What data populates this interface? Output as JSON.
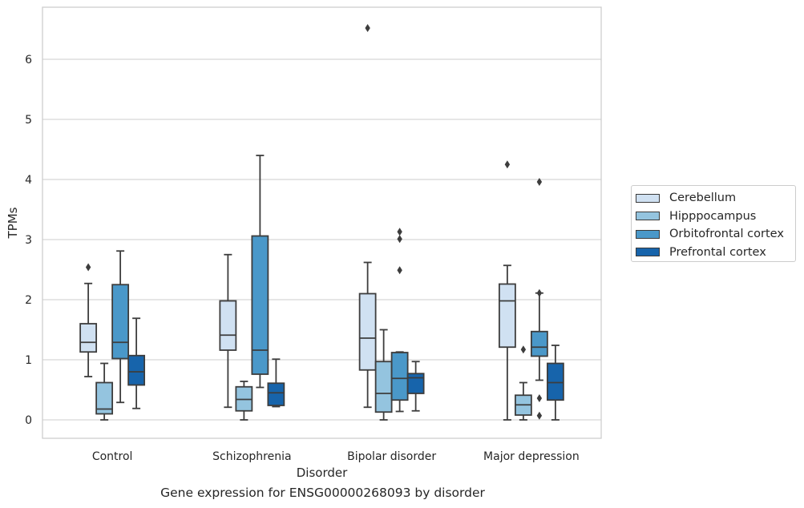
{
  "chart_data": {
    "type": "box",
    "caption": "Gene expression for ENSG00000268093 by disorder",
    "xlabel": "Disorder",
    "ylabel": "TPMs",
    "ylim": [
      -0.32,
      6.88
    ],
    "yticks": [
      0,
      1,
      2,
      3,
      4,
      5,
      6
    ],
    "grid": true,
    "legend_position": "right",
    "categories": [
      "Control",
      "Schizophrenia",
      "Bipolar disorder",
      "Major depression"
    ],
    "series": [
      {
        "name": "Cerebellum",
        "color": "#d0e1f2",
        "boxes": [
          {
            "whislo": 0.72,
            "q1": 1.13,
            "med": 1.29,
            "q3": 1.6,
            "whishi": 2.27,
            "fliers": [
              2.54
            ]
          },
          {
            "whislo": 0.21,
            "q1": 1.16,
            "med": 1.41,
            "q3": 1.98,
            "whishi": 2.75,
            "fliers": []
          },
          {
            "whislo": 0.21,
            "q1": 0.83,
            "med": 1.36,
            "q3": 2.1,
            "whishi": 2.62,
            "fliers": [
              6.52
            ]
          },
          {
            "whislo": 0.0,
            "q1": 1.21,
            "med": 1.98,
            "q3": 2.26,
            "whishi": 2.57,
            "fliers": [
              4.25
            ]
          }
        ]
      },
      {
        "name": "Hipppocampus",
        "color": "#94c4df",
        "boxes": [
          {
            "whislo": 0.0,
            "q1": 0.1,
            "med": 0.18,
            "q3": 0.62,
            "whishi": 0.94,
            "fliers": []
          },
          {
            "whislo": 0.0,
            "q1": 0.15,
            "med": 0.34,
            "q3": 0.55,
            "whishi": 0.64,
            "fliers": []
          },
          {
            "whislo": 0.0,
            "q1": 0.13,
            "med": 0.44,
            "q3": 0.97,
            "whishi": 1.5,
            "fliers": []
          },
          {
            "whislo": 0.0,
            "q1": 0.08,
            "med": 0.25,
            "q3": 0.41,
            "whishi": 0.62,
            "fliers": [
              1.17
            ]
          }
        ]
      },
      {
        "name": "Orbitofrontal cortex",
        "color": "#4a98c9",
        "boxes": [
          {
            "whislo": 0.29,
            "q1": 1.02,
            "med": 1.29,
            "q3": 2.25,
            "whishi": 2.81,
            "fliers": []
          },
          {
            "whislo": 0.54,
            "q1": 0.76,
            "med": 1.16,
            "q3": 3.06,
            "whishi": 4.4,
            "fliers": []
          },
          {
            "whislo": 0.14,
            "q1": 0.33,
            "med": 0.69,
            "q3": 1.12,
            "whishi": 1.13,
            "fliers": [
              2.49,
              3.01,
              3.13
            ]
          },
          {
            "whislo": 0.66,
            "q1": 1.06,
            "med": 1.21,
            "q3": 1.47,
            "whishi": 2.11,
            "fliers": [
              0.07,
              0.36,
              2.11,
              3.96
            ]
          }
        ]
      },
      {
        "name": "Prefrontal cortex",
        "color": "#1764ab",
        "boxes": [
          {
            "whislo": 0.19,
            "q1": 0.58,
            "med": 0.8,
            "q3": 1.07,
            "whishi": 1.69,
            "fliers": []
          },
          {
            "whislo": 0.22,
            "q1": 0.24,
            "med": 0.45,
            "q3": 0.61,
            "whishi": 1.01,
            "fliers": []
          },
          {
            "whislo": 0.15,
            "q1": 0.44,
            "med": 0.7,
            "q3": 0.77,
            "whishi": 0.97,
            "fliers": []
          },
          {
            "whislo": 0.0,
            "q1": 0.33,
            "med": 0.62,
            "q3": 0.94,
            "whishi": 1.24,
            "fliers": []
          }
        ]
      }
    ]
  }
}
